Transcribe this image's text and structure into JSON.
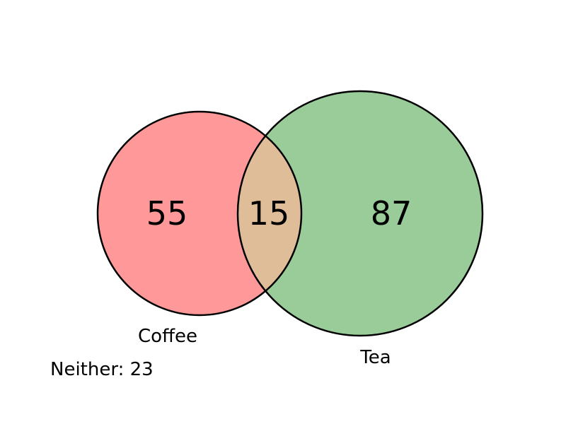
{
  "diagram": {
    "type": "venn-2",
    "sets": [
      {
        "name": "Coffee",
        "only_count": "55",
        "color": "#ff9999"
      },
      {
        "name": "Tea",
        "only_count": "87",
        "color": "#99cc99"
      }
    ],
    "intersection": {
      "count": "15",
      "color": "#e0bd99"
    },
    "outside": {
      "text": "Neither: 23"
    },
    "outline_color": "#000000"
  }
}
